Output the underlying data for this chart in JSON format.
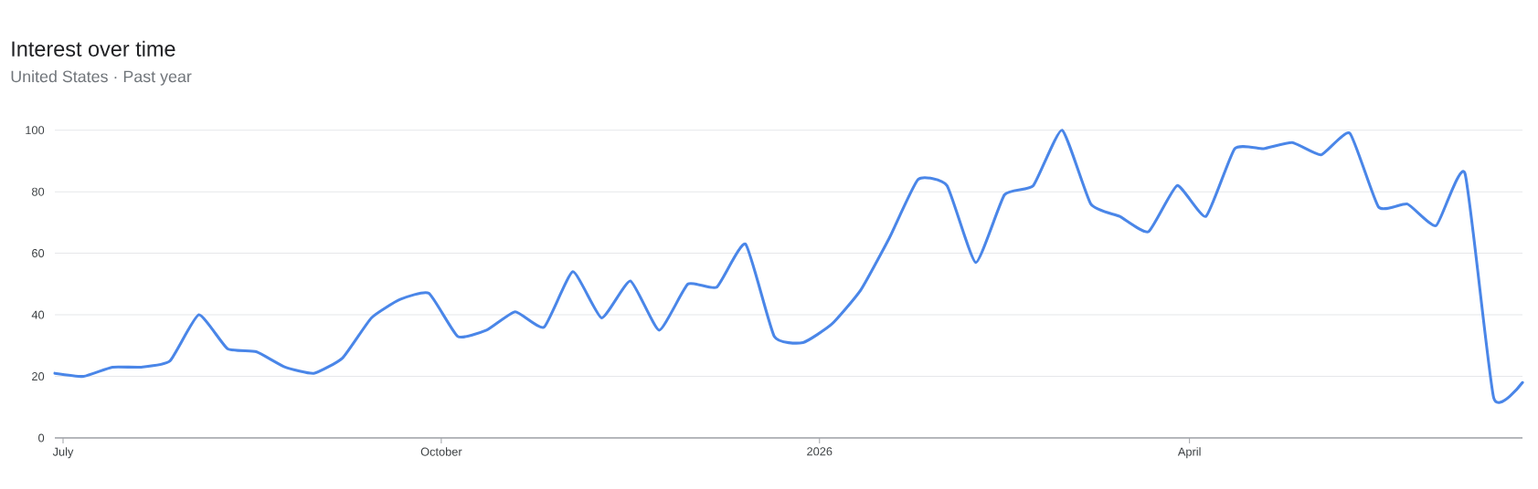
{
  "chart_data": {
    "type": "line",
    "title": "Interest over time",
    "subtitle": "United States · Past year",
    "x": [
      "2025-06-29",
      "2025-07-06",
      "2025-07-13",
      "2025-07-20",
      "2025-07-27",
      "2025-08-03",
      "2025-08-10",
      "2025-08-17",
      "2025-08-24",
      "2025-08-31",
      "2025-09-07",
      "2025-09-14",
      "2025-09-21",
      "2025-09-28",
      "2025-10-05",
      "2025-10-12",
      "2025-10-19",
      "2025-10-26",
      "2025-11-02",
      "2025-11-09",
      "2025-11-16",
      "2025-11-23",
      "2025-11-30",
      "2025-12-07",
      "2025-12-14",
      "2025-12-21",
      "2025-12-28",
      "2026-01-04",
      "2026-01-11",
      "2026-01-18",
      "2026-01-25",
      "2026-02-01",
      "2026-02-08",
      "2026-02-15",
      "2026-02-22",
      "2026-03-01",
      "2026-03-08",
      "2026-03-15",
      "2026-03-22",
      "2026-03-29",
      "2026-04-05",
      "2026-04-12",
      "2026-04-19",
      "2026-04-26",
      "2026-05-03",
      "2026-05-10",
      "2026-05-17",
      "2026-05-24",
      "2026-05-31",
      "2026-06-07",
      "2026-06-14",
      "2026-06-21"
    ],
    "series": [
      {
        "color": "#4a86e8",
        "values": [
          21,
          20,
          23,
          23,
          25,
          40,
          29,
          28,
          23,
          21,
          26,
          39,
          45,
          47,
          33,
          35,
          41,
          36,
          54,
          39,
          51,
          35,
          50,
          49,
          63,
          33,
          31,
          37,
          48,
          65,
          84,
          82,
          57,
          79,
          82,
          100,
          76,
          72,
          67,
          82,
          72,
          94,
          94,
          96,
          92,
          99,
          75,
          76,
          69,
          86,
          13,
          18
        ]
      }
    ],
    "xlim": [
      "2025-06-29",
      "2026-06-21"
    ],
    "ylim": [
      0,
      100
    ],
    "xticks": [
      {
        "value": "2025-07-01",
        "label": "July"
      },
      {
        "value": "2025-10-01",
        "label": "October"
      },
      {
        "value": "2026-01-01",
        "label": "2026"
      },
      {
        "value": "2026-04-01",
        "label": "April"
      }
    ],
    "yticks": [
      0,
      20,
      40,
      60,
      80,
      100
    ],
    "grid": "y",
    "line_style": "solid"
  }
}
